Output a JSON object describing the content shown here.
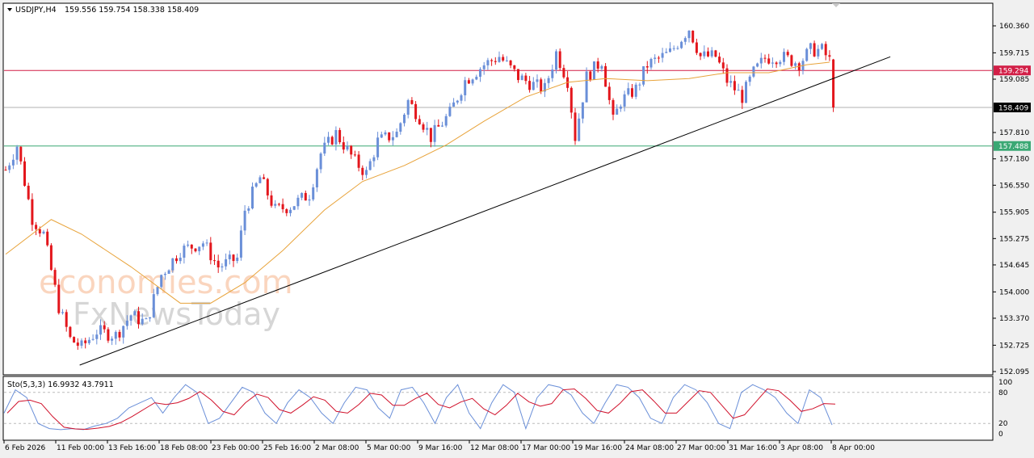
{
  "header": {
    "symbol": "USDJPY,H4",
    "ohlc": "159.556 159.754 158.338 158.409",
    "menu_icon": "triangle-down-icon"
  },
  "watermark": {
    "line1": "economies.com",
    "line2": "FxNewsToday"
  },
  "colors": {
    "bull": "#6a8fd8",
    "bear": "#e3161c",
    "ma": "#e8a33a",
    "resistance": "#d21f47",
    "current": "#000000",
    "support": "#3aa874",
    "trendline": "#000000",
    "stoch_main": "#6a8fd8",
    "stoch_signal": "#d0102a"
  },
  "chart_data": [
    {
      "type": "candlestick",
      "title": "USDJPY,H4",
      "ylim": [
        152.095,
        160.36
      ],
      "y_ticks": [
        "160.360",
        "159.715",
        "159.085",
        "157.810",
        "157.180",
        "156.550",
        "155.905",
        "155.275",
        "154.645",
        "154.000",
        "153.370",
        "152.725",
        "152.095"
      ],
      "x_ticks": [
        "6 Feb 2026",
        "11 Feb 00:00",
        "13 Feb 16:00",
        "18 Feb 08:00",
        "23 Feb 00:00",
        "25 Feb 16:00",
        "2 Mar 08:00",
        "5 Mar 00:00",
        "9 Mar 16:00",
        "12 Mar 08:00",
        "17 Mar 00:00",
        "19 Mar 16:00",
        "24 Mar 08:00",
        "27 Mar 00:00",
        "31 Mar 16:00",
        "3 Apr 08:00",
        "8 Apr 00:00"
      ],
      "close_trace_bar_price": [
        [
          0,
          156.92
        ],
        [
          3,
          157.5
        ],
        [
          7,
          155.76
        ],
        [
          10,
          155.38
        ],
        [
          14,
          153.64
        ],
        [
          17,
          152.87
        ],
        [
          20,
          152.68
        ],
        [
          24,
          153.06
        ],
        [
          29,
          152.96
        ],
        [
          33,
          153.45
        ],
        [
          37,
          153.25
        ],
        [
          41,
          154.41
        ],
        [
          46,
          154.99
        ],
        [
          52,
          155.18
        ],
        [
          56,
          154.6
        ],
        [
          61,
          154.8
        ],
        [
          63,
          155.96
        ],
        [
          67,
          156.73
        ],
        [
          71,
          155.96
        ],
        [
          75,
          156.05
        ],
        [
          80,
          156.34
        ],
        [
          83,
          157.31
        ],
        [
          87,
          157.79
        ],
        [
          92,
          157.12
        ],
        [
          95,
          156.83
        ],
        [
          98,
          157.6
        ],
        [
          103,
          157.79
        ],
        [
          106,
          158.56
        ],
        [
          109,
          158.18
        ],
        [
          112,
          157.7
        ],
        [
          117,
          158.27
        ],
        [
          121,
          159.05
        ],
        [
          126,
          159.43
        ],
        [
          130,
          159.63
        ],
        [
          135,
          159.14
        ],
        [
          139,
          158.95
        ],
        [
          142,
          158.85
        ],
        [
          145,
          159.72
        ],
        [
          148,
          159.05
        ],
        [
          150,
          157.7
        ],
        [
          153,
          159.14
        ],
        [
          157,
          159.53
        ],
        [
          160,
          158.08
        ],
        [
          162,
          158.56
        ],
        [
          166,
          158.85
        ],
        [
          169,
          159.43
        ],
        [
          175,
          159.72
        ],
        [
          180,
          160.3
        ],
        [
          183,
          159.63
        ],
        [
          187,
          159.63
        ],
        [
          190,
          159.05
        ],
        [
          194,
          158.66
        ],
        [
          197,
          159.24
        ],
        [
          200,
          159.59
        ],
        [
          204,
          159.63
        ],
        [
          209,
          159.47
        ],
        [
          212,
          159.78
        ],
        [
          215,
          159.78
        ],
        [
          217,
          159.53
        ],
        [
          218,
          158.409
        ]
      ],
      "moving_average_bar_price": [
        [
          0,
          154.9
        ],
        [
          12,
          155.73
        ],
        [
          20,
          155.38
        ],
        [
          33,
          154.6
        ],
        [
          46,
          153.73
        ],
        [
          54,
          153.73
        ],
        [
          63,
          154.22
        ],
        [
          73,
          154.99
        ],
        [
          84,
          155.96
        ],
        [
          94,
          156.64
        ],
        [
          105,
          157.02
        ],
        [
          116,
          157.51
        ],
        [
          126,
          158.08
        ],
        [
          137,
          158.66
        ],
        [
          148,
          159.01
        ],
        [
          158,
          159.1
        ],
        [
          169,
          159.05
        ],
        [
          180,
          159.1
        ],
        [
          190,
          159.24
        ],
        [
          201,
          159.24
        ],
        [
          211,
          159.43
        ],
        [
          217,
          159.49
        ]
      ],
      "horizontal_lines": [
        {
          "price": 159.294,
          "label": "159.294",
          "role": "resistance"
        },
        {
          "price": 158.409,
          "label": "158.409",
          "role": "current"
        },
        {
          "price": 157.488,
          "label": "157.488",
          "role": "support"
        }
      ],
      "trendline": {
        "from": [
          19.5,
          152.25
        ],
        "to": [
          233,
          159.62
        ]
      }
    },
    {
      "type": "line",
      "title": "Sto(5,3,3) 16.9932 43.7911",
      "ylim": [
        0,
        100
      ],
      "y_ticks": [
        "100",
        "80",
        "20",
        "0"
      ],
      "levels": [
        80,
        20
      ],
      "main": [
        40,
        85,
        70,
        20,
        10,
        8,
        10,
        8,
        15,
        20,
        30,
        50,
        60,
        70,
        40,
        70,
        95,
        80,
        20,
        30,
        60,
        90,
        80,
        40,
        20,
        60,
        85,
        70,
        40,
        20,
        60,
        90,
        85,
        50,
        30,
        85,
        90,
        60,
        20,
        70,
        95,
        40,
        10,
        60,
        95,
        80,
        10,
        70,
        95,
        90,
        75,
        40,
        20,
        60,
        95,
        90,
        70,
        30,
        20,
        70,
        95,
        85,
        60,
        20,
        10,
        80,
        95,
        85,
        70,
        40,
        20,
        85,
        70,
        17
      ]
    }
  ]
}
